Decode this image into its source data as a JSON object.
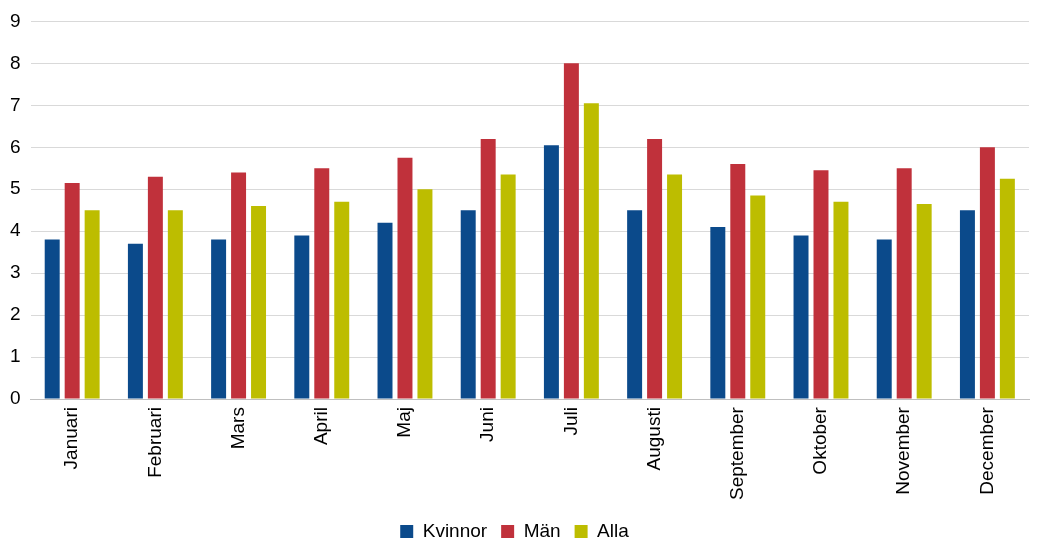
{
  "chart_data": {
    "type": "bar",
    "categories": [
      "Januari",
      "Februari",
      "Mars",
      "April",
      "Maj",
      "Juni",
      "Juli",
      "Augusti",
      "September",
      "Oktober",
      "November",
      "December"
    ],
    "series": [
      {
        "name": "Kvinnor",
        "color": "#0b4a8b",
        "values": [
          3.8,
          3.7,
          3.8,
          3.9,
          4.2,
          4.5,
          6.05,
          4.5,
          4.1,
          3.9,
          3.8,
          4.5
        ]
      },
      {
        "name": "Män",
        "color": "#c0313b",
        "values": [
          5.15,
          5.3,
          5.4,
          5.5,
          5.75,
          6.2,
          8.0,
          6.2,
          5.6,
          5.45,
          5.5,
          6.0
        ]
      },
      {
        "name": "Alla",
        "color": "#bdbd00",
        "values": [
          4.5,
          4.5,
          4.6,
          4.7,
          5.0,
          5.35,
          7.05,
          5.35,
          4.85,
          4.7,
          4.65,
          5.25
        ]
      }
    ],
    "ylim": [
      0,
      9
    ],
    "yticks": [
      0,
      1,
      2,
      3,
      4,
      5,
      6,
      7,
      8,
      9
    ],
    "grid": "y",
    "legend": "bottom"
  }
}
